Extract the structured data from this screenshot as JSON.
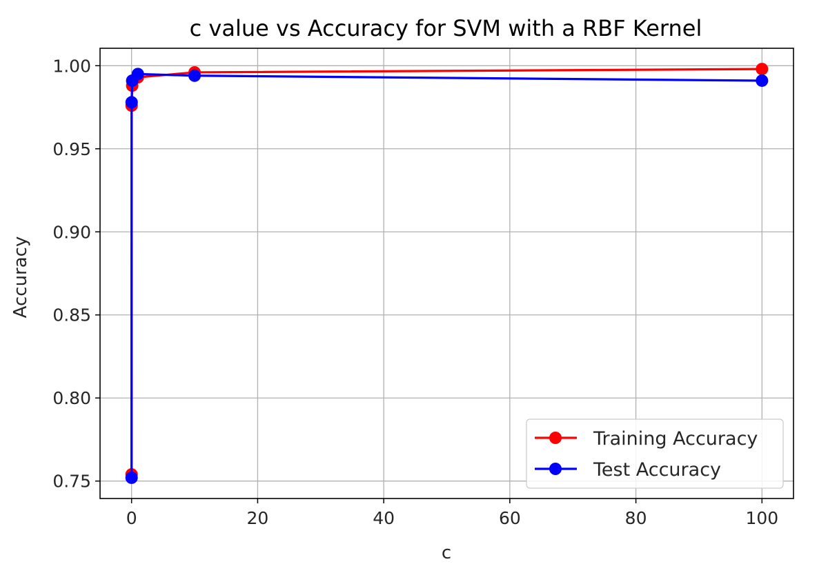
{
  "chart_data": {
    "type": "line",
    "title": "c value vs Accuracy for SVM with a RBF Kernel",
    "xlabel": "c",
    "ylabel": "Accuracy",
    "xlim": [
      -5,
      105
    ],
    "ylim": [
      0.7395,
      1.0105
    ],
    "xticks": [
      0,
      20,
      40,
      60,
      80,
      100
    ],
    "xtick_labels": [
      "0",
      "20",
      "40",
      "60",
      "80",
      "100"
    ],
    "yticks": [
      0.75,
      0.8,
      0.85,
      0.9,
      0.95,
      1.0
    ],
    "ytick_labels": [
      "0.75",
      "0.80",
      "0.85",
      "0.90",
      "0.95",
      "1.00"
    ],
    "grid": true,
    "legend_position": "lower-right",
    "x": [
      0.001,
      0.01,
      0.1,
      1,
      10,
      100
    ],
    "series": [
      {
        "name": "Training Accuracy",
        "color": "#ff0000",
        "marker": "circle",
        "values": [
          0.754,
          0.976,
          0.988,
          0.993,
          0.996,
          0.998
        ]
      },
      {
        "name": "Test Accuracy",
        "color": "#0000ff",
        "marker": "circle",
        "values": [
          0.752,
          0.978,
          0.991,
          0.995,
          0.994,
          0.991
        ]
      }
    ]
  }
}
